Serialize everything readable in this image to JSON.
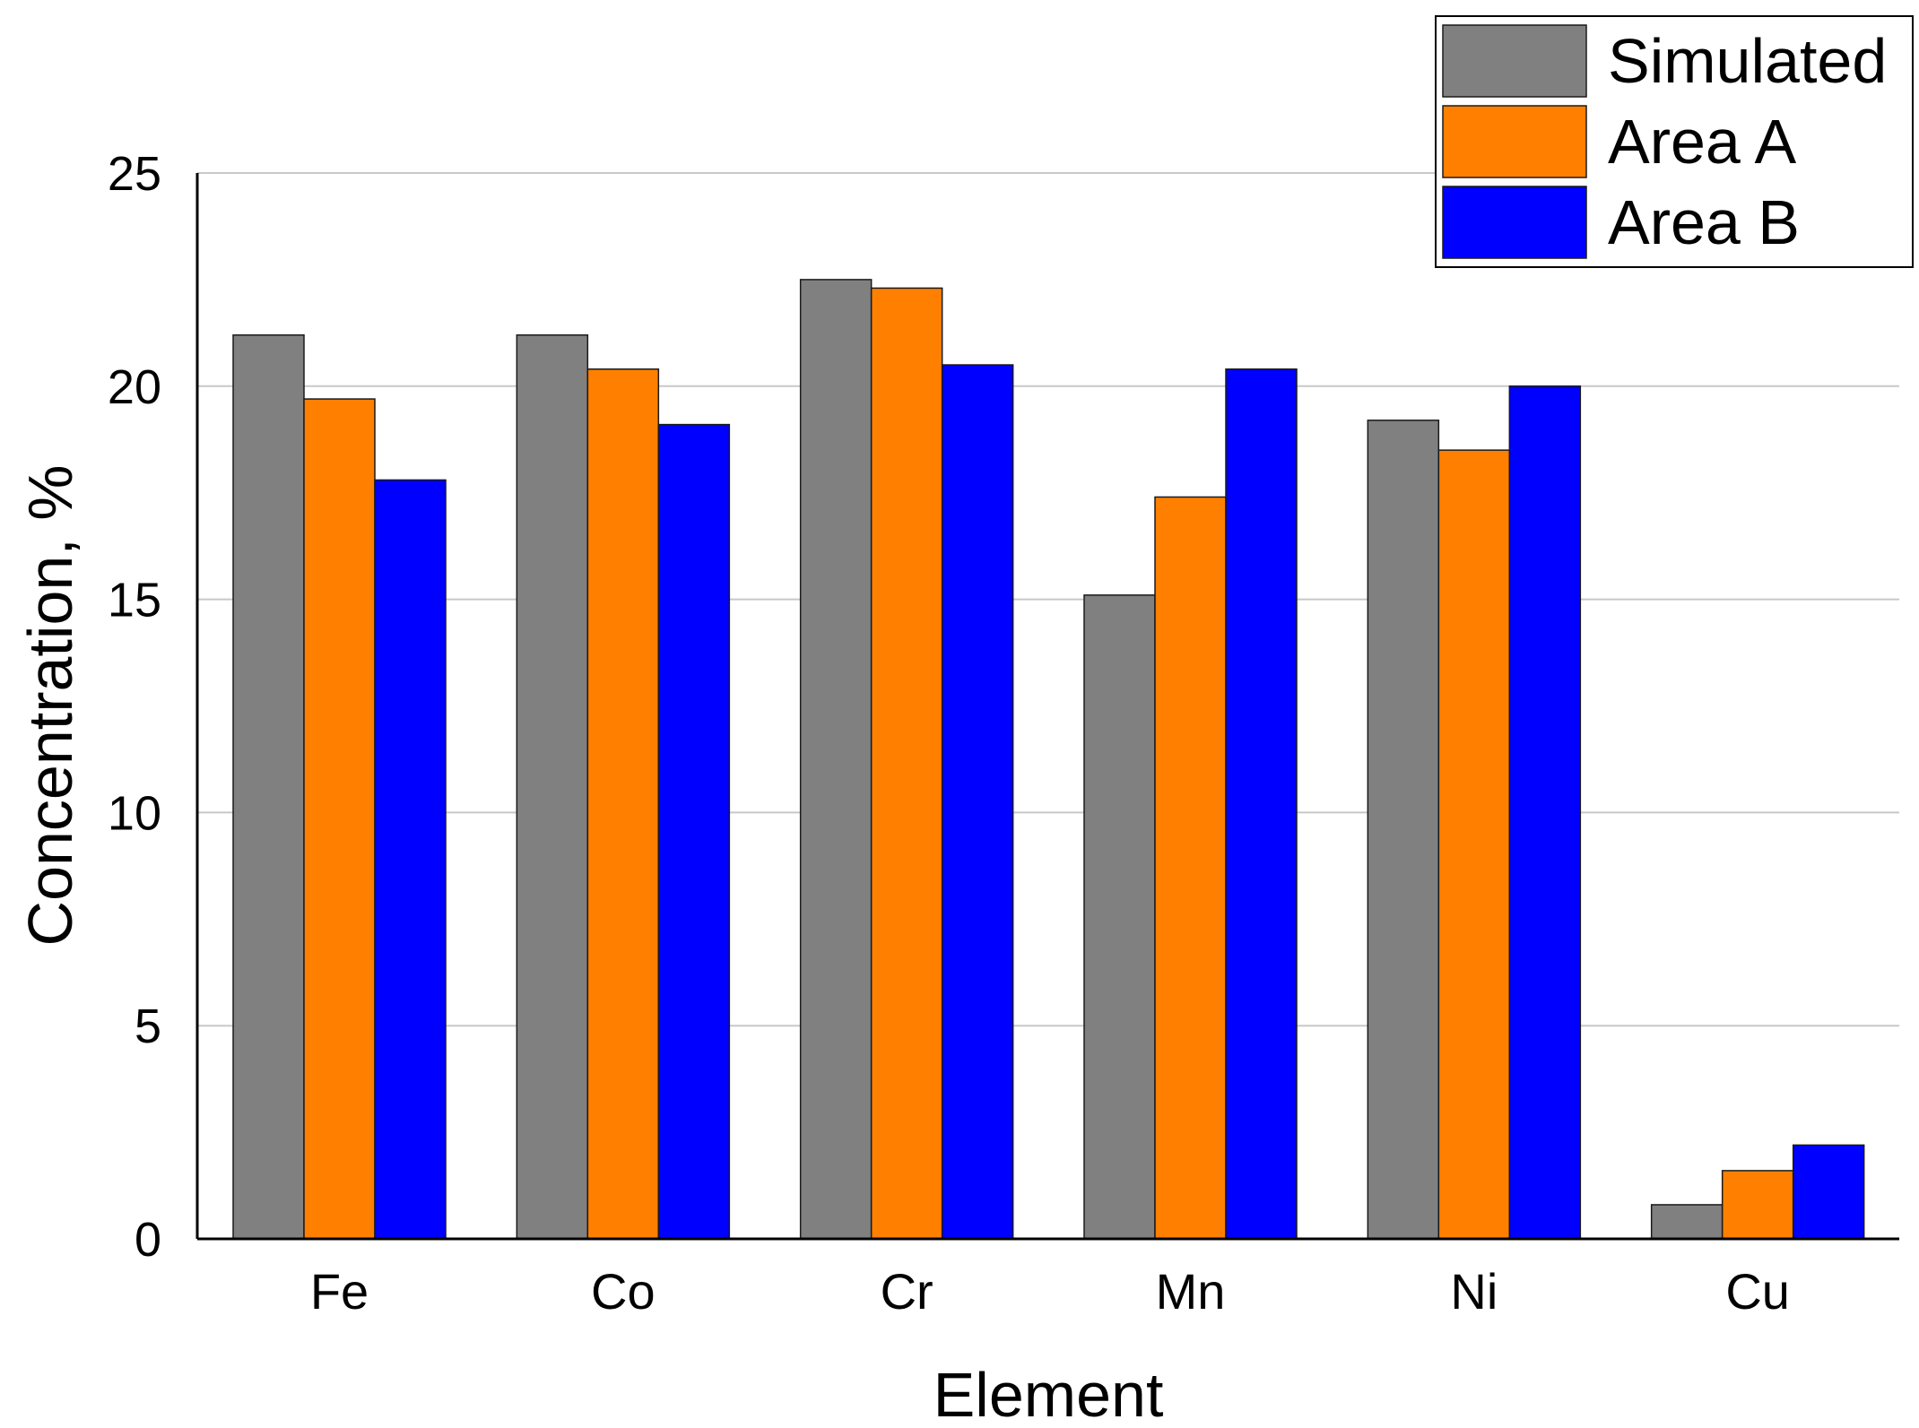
{
  "chart_data": {
    "type": "bar",
    "title": "",
    "xlabel": "Element",
    "ylabel": "Concentration, %",
    "ylim": [
      0,
      25
    ],
    "yticks": [
      0,
      5,
      10,
      15,
      20,
      25
    ],
    "grid": true,
    "legend_position": "top-right",
    "categories": [
      "Fe",
      "Co",
      "Cr",
      "Mn",
      "Ni",
      "Cu"
    ],
    "series": [
      {
        "name": "Simulated",
        "color": "#808080",
        "values": [
          21.2,
          21.2,
          22.5,
          15.1,
          19.2,
          0.8
        ]
      },
      {
        "name": "Area A",
        "color": "#ff7f00",
        "values": [
          19.7,
          20.4,
          22.3,
          17.4,
          18.5,
          1.6
        ]
      },
      {
        "name": "Area B",
        "color": "#0000ff",
        "values": [
          17.8,
          19.1,
          20.5,
          20.4,
          20.0,
          2.2
        ]
      }
    ]
  }
}
